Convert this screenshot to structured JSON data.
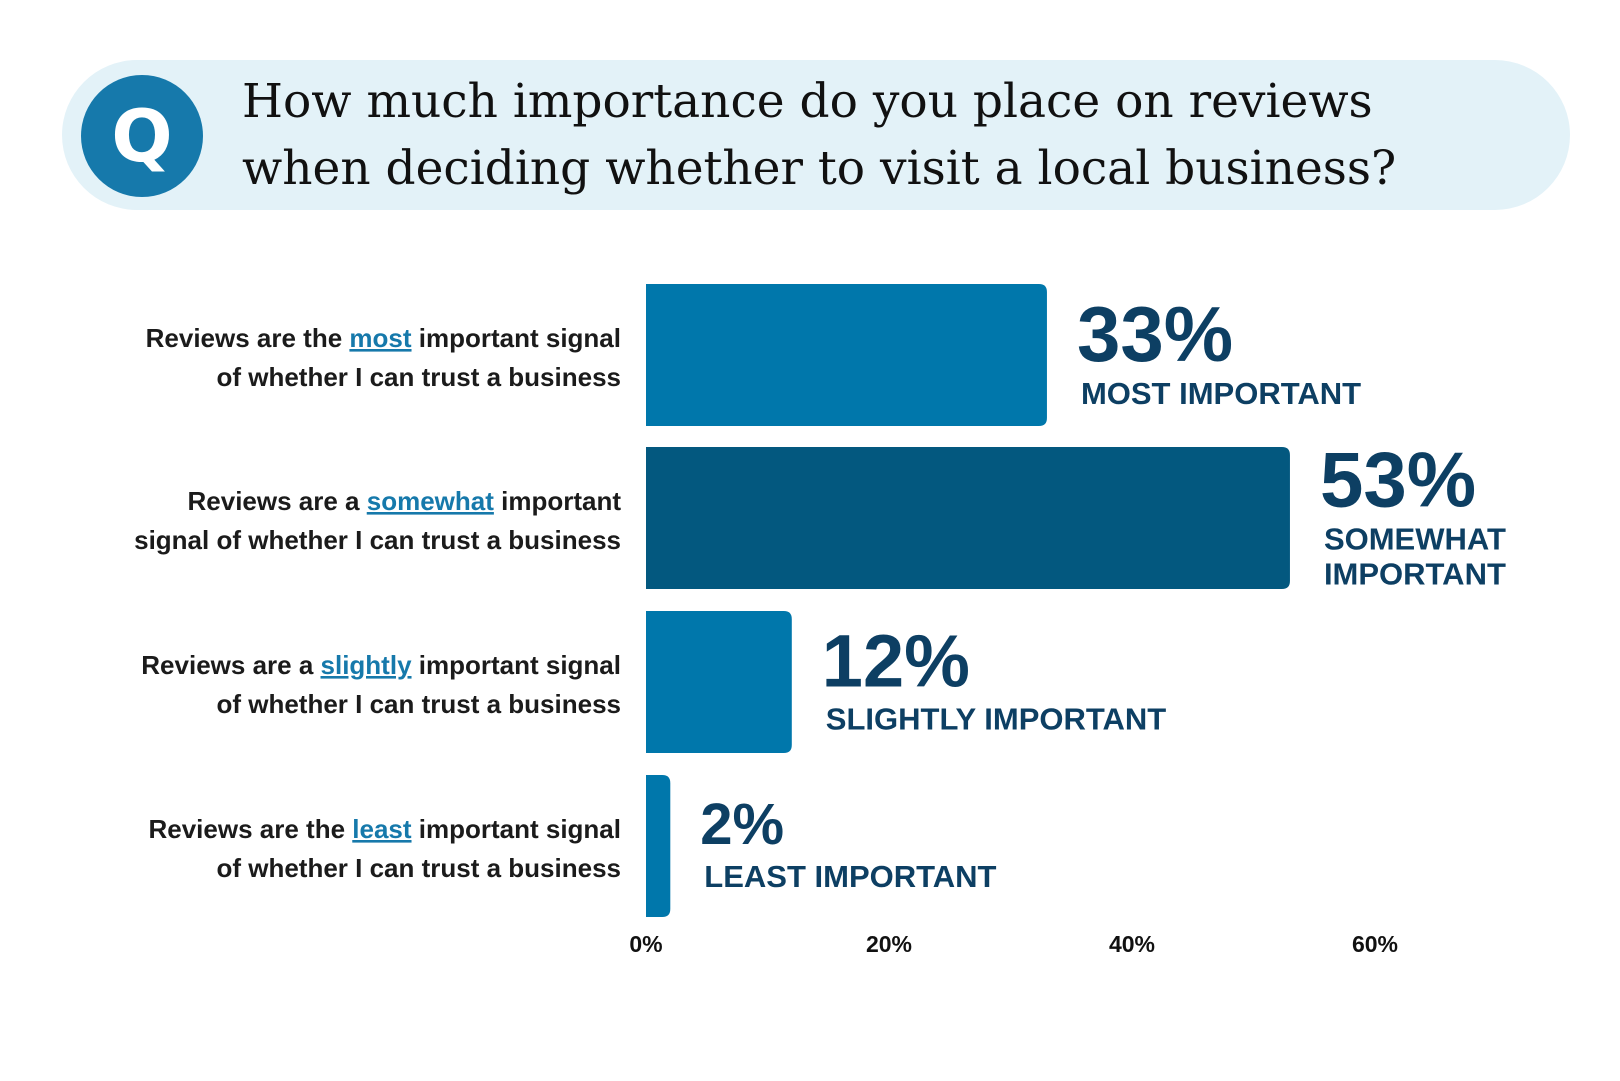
{
  "question": {
    "badge": "Q",
    "line1": "How much importance do you place on reviews",
    "line2": "when deciding whether to visit a local business?"
  },
  "colors": {
    "bar": "#0077ab",
    "bar_highlight": "#03587f",
    "text_dark": "#0d3f63",
    "emphasis": "#1679ab",
    "banner": "#e3f2f8"
  },
  "chart_data": {
    "type": "bar",
    "orientation": "horizontal",
    "categories": [
      {
        "line1": [
          "Reviews are the ",
          "most",
          " important signal"
        ],
        "line2": "of whether I can trust a business"
      },
      {
        "line1": [
          "Reviews are a ",
          "somewhat",
          " important"
        ],
        "line2": "signal of whether I can trust a business"
      },
      {
        "line1": [
          "Reviews are a ",
          "slightly",
          " important signal"
        ],
        "line2": "of whether I can trust a business"
      },
      {
        "line1": [
          "Reviews are the ",
          "least",
          " important signal"
        ],
        "line2": "of whether I can trust a business"
      }
    ],
    "values": [
      33,
      53,
      12,
      2
    ],
    "value_labels": [
      "33%",
      "53%",
      "12%",
      "2%"
    ],
    "sub_labels": [
      [
        "MOST IMPORTANT"
      ],
      [
        "SOMEWHAT",
        "IMPORTANT"
      ],
      [
        "SLIGHTLY IMPORTANT"
      ],
      [
        "LEAST IMPORTANT"
      ]
    ],
    "highlight_index": 1,
    "xlim": [
      0,
      60
    ],
    "x_ticks": [
      0,
      20,
      40,
      60
    ],
    "x_tick_labels": [
      "0%",
      "20%",
      "40%",
      "60%"
    ],
    "grid": false,
    "legend": "none"
  }
}
